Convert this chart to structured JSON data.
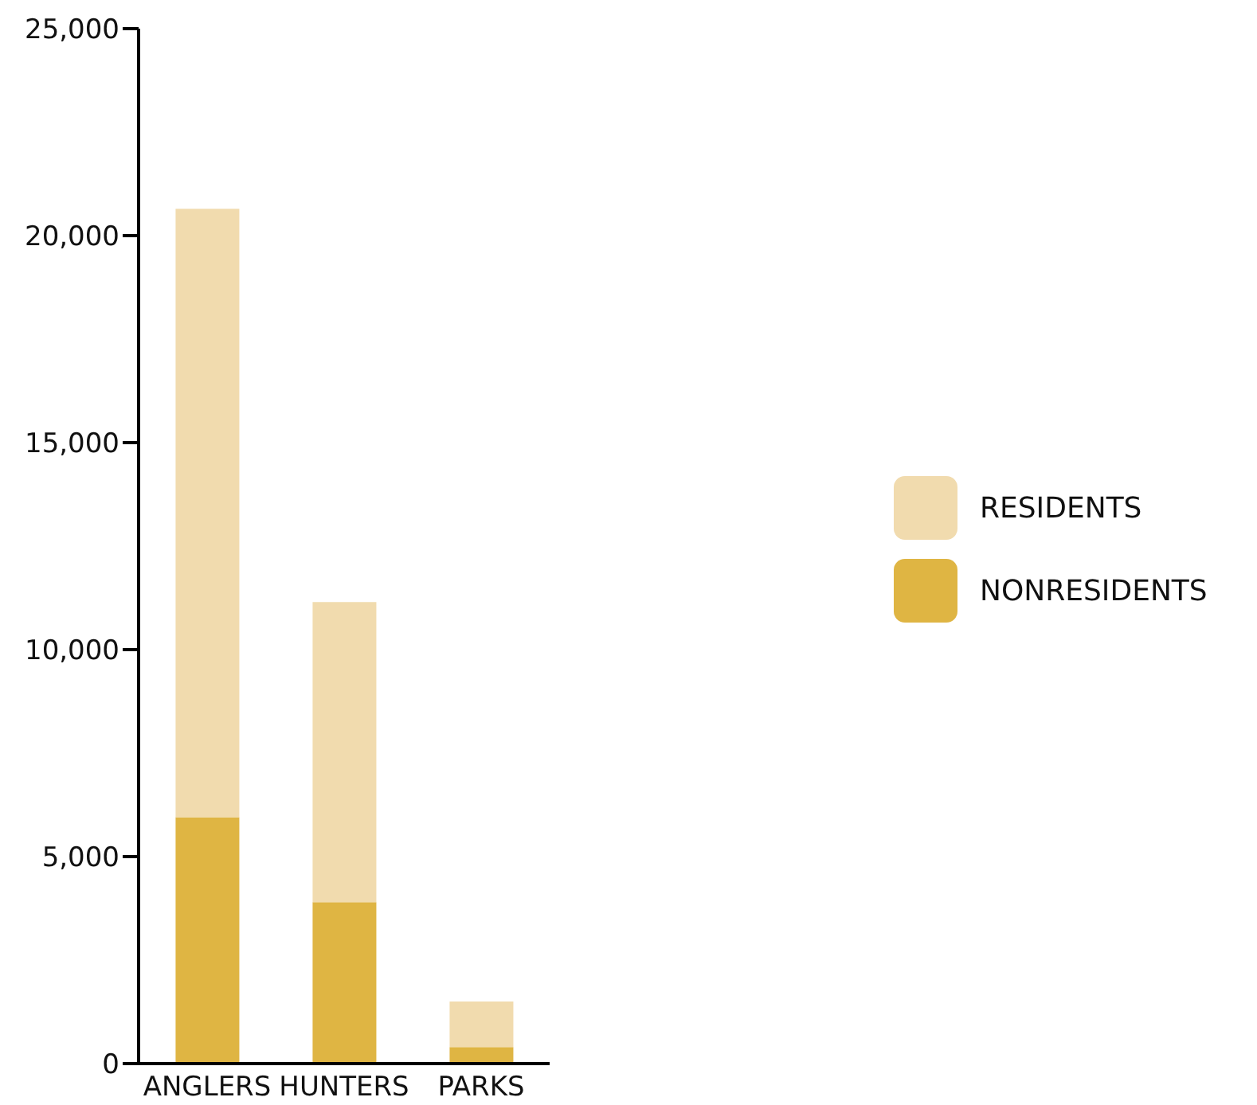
{
  "chart_data": {
    "type": "bar",
    "stacked": true,
    "categories": [
      "ANGLERS",
      "HUNTERS",
      "PARKS"
    ],
    "series": [
      {
        "name": "NONRESIDENTS",
        "color": "#dfb543",
        "values": [
          5950,
          3900,
          400
        ]
      },
      {
        "name": "RESIDENTS",
        "color": "#f1dbae",
        "values": [
          14700,
          7250,
          1100
        ]
      }
    ],
    "ylim": [
      0,
      25000
    ],
    "yticks": [
      {
        "value": 0,
        "label": "0"
      },
      {
        "value": 5000,
        "label": "5,000"
      },
      {
        "value": 10000,
        "label": "10,000"
      },
      {
        "value": 15000,
        "label": "15,000"
      },
      {
        "value": 20000,
        "label": "20,000"
      },
      {
        "value": 25000,
        "label": "25,000"
      }
    ],
    "grid": false,
    "legend": "right"
  }
}
